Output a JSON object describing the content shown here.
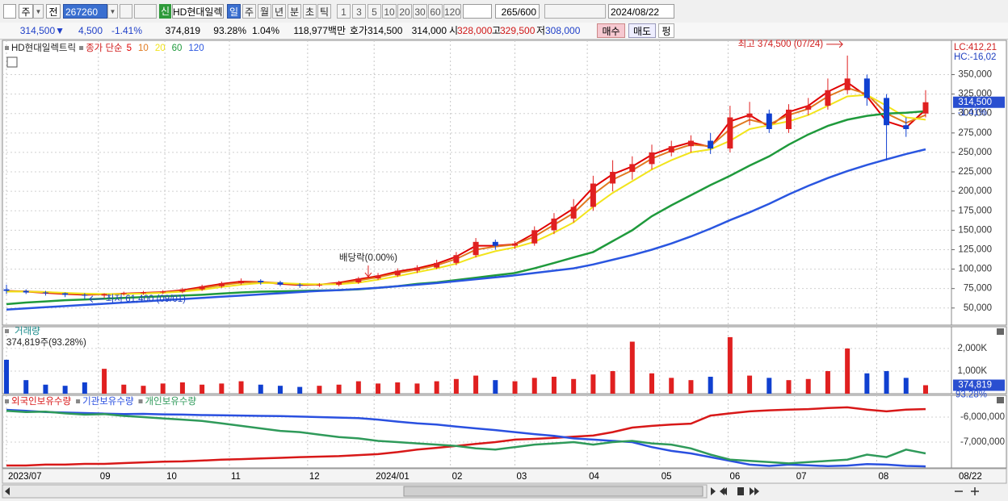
{
  "toolbar": {
    "market": "주",
    "prev": "전",
    "code": "267260",
    "name": "HD현대일렉",
    "badge": "신",
    "periods": [
      "일",
      "주",
      "월",
      "년",
      "분",
      "초",
      "틱"
    ],
    "intervals": [
      "1",
      "3",
      "5",
      "10",
      "20",
      "30",
      "60",
      "120"
    ],
    "count": "265/600",
    "date": "2024/08/22"
  },
  "info": {
    "price": "314,500▼",
    "change": "4,500",
    "rate": "-1.41%",
    "volume": "374,819",
    "vol_rate": "93.28%",
    "turnover": "1.04%",
    "amount": "118,977백만",
    "quote_label": "호가",
    "ask": "314,500",
    "bid": "314,000",
    "open_label": "시",
    "open": "328,000",
    "high_label": "고",
    "high": "329,500",
    "low_label": "저",
    "low": "308,000",
    "buy": "매수",
    "sell": "매도",
    "avg": "펑"
  },
  "chart_data": [
    {
      "type": "candlestick",
      "title": "HD현대일렉트릭",
      "ma_label": "종가 단순",
      "up_color": "#e02020",
      "down_color": "#1040d0",
      "open": [
        74000,
        72000,
        70000,
        69000,
        67000,
        66000,
        68000,
        69000,
        70000,
        71000,
        74000,
        78000,
        82000,
        85000,
        83000,
        80000,
        79000,
        80000,
        83000,
        88000,
        92000,
        98000,
        102000,
        108000,
        118000,
        135000,
        130000,
        133000,
        150000,
        165000,
        180000,
        210000,
        225000,
        235000,
        250000,
        258000,
        265000,
        255000,
        295000,
        300000,
        280000,
        305000,
        310000,
        330000,
        345000,
        320000,
        285000,
        300000
      ],
      "high": [
        80000,
        74000,
        72000,
        70000,
        69000,
        69000,
        71000,
        72000,
        73000,
        76000,
        80000,
        84000,
        88000,
        87000,
        85000,
        82000,
        82000,
        85000,
        90000,
        95000,
        101000,
        105000,
        112000,
        122000,
        140000,
        138000,
        136000,
        155000,
        172000,
        190000,
        220000,
        240000,
        245000,
        260000,
        265000,
        272000,
        275000,
        310000,
        315000,
        305000,
        312000,
        320000,
        345000,
        374500,
        350000,
        325000,
        295000,
        330000
      ],
      "low": [
        68000,
        68000,
        66000,
        64000,
        61400,
        63000,
        66000,
        67000,
        68000,
        69000,
        72000,
        76000,
        80000,
        80000,
        78000,
        76000,
        77000,
        78000,
        81000,
        86000,
        90000,
        95000,
        100000,
        105000,
        115000,
        125000,
        126000,
        130000,
        145000,
        160000,
        175000,
        200000,
        215000,
        228000,
        245000,
        250000,
        248000,
        250000,
        285000,
        275000,
        275000,
        298000,
        305000,
        325000,
        310000,
        240000,
        270000,
        295000
      ],
      "close": [
        72000,
        70000,
        69000,
        67000,
        66000,
        68000,
        69000,
        70000,
        71000,
        74000,
        78000,
        82000,
        85000,
        83000,
        80000,
        79000,
        80000,
        83000,
        88000,
        92000,
        98000,
        102000,
        108000,
        118000,
        135000,
        130000,
        133000,
        150000,
        165000,
        180000,
        210000,
        225000,
        235000,
        250000,
        258000,
        265000,
        255000,
        295000,
        300000,
        280000,
        305000,
        310000,
        330000,
        345000,
        320000,
        285000,
        280000,
        314500
      ],
      "series": [
        {
          "name": "5",
          "color": "#e00000",
          "values": [
            72000,
            71000,
            69500,
            68000,
            67000,
            67500,
            68500,
            69500,
            70500,
            73000,
            77000,
            81000,
            84000,
            83500,
            81000,
            79500,
            80000,
            82500,
            87000,
            91000,
            97000,
            101000,
            107000,
            116000,
            130000,
            130000,
            132000,
            146000,
            162000,
            178000,
            205000,
            222000,
            232000,
            247000,
            256000,
            263000,
            257000,
            290000,
            298000,
            283000,
            302000,
            310000,
            328000,
            340000,
            322000,
            290000,
            282000,
            305000
          ]
        },
        {
          "name": "10",
          "color": "#e07a20",
          "values": [
            72000,
            71500,
            70500,
            69000,
            68000,
            67500,
            68000,
            69000,
            70000,
            72000,
            75500,
            79500,
            82500,
            83500,
            82000,
            80500,
            80000,
            81500,
            85500,
            89500,
            95000,
            99500,
            105000,
            113000,
            125000,
            129000,
            131500,
            142000,
            157000,
            172000,
            196000,
            215000,
            227000,
            242000,
            252000,
            260000,
            258000,
            280000,
            292000,
            286000,
            298000,
            306000,
            322000,
            333000,
            325000,
            300000,
            288000,
            298000
          ]
        },
        {
          "name": "20",
          "color": "#f2e41c",
          "values": [
            71000,
            71000,
            70500,
            69500,
            68500,
            68000,
            68000,
            68500,
            69500,
            71000,
            73500,
            77000,
            80000,
            82000,
            82000,
            81000,
            80500,
            80500,
            82500,
            86500,
            91000,
            96000,
            101000,
            107000,
            116000,
            123000,
            128000,
            135000,
            147000,
            160000,
            180000,
            198000,
            213000,
            228000,
            240000,
            250000,
            254000,
            265000,
            280000,
            285000,
            290000,
            298000,
            310000,
            322000,
            324000,
            310000,
            295000,
            292000
          ]
        },
        {
          "name": "60",
          "color": "#1f9a3c",
          "values": [
            55000,
            57000,
            58500,
            60000,
            61000,
            62000,
            63000,
            64000,
            65000,
            66000,
            67000,
            68500,
            70000,
            71000,
            71500,
            72000,
            72500,
            73000,
            74000,
            76000,
            78000,
            81000,
            83000,
            86000,
            89000,
            92000,
            95000,
            101000,
            108000,
            115000,
            122000,
            136000,
            150000,
            168000,
            182000,
            195000,
            208000,
            220000,
            233000,
            245000,
            260000,
            273000,
            284000,
            292000,
            297000,
            300000,
            301000,
            303000
          ]
        },
        {
          "name": "120",
          "color": "#2a56e0",
          "values": [
            48000,
            49500,
            51000,
            52500,
            54000,
            55500,
            57000,
            58500,
            60000,
            61500,
            63000,
            64500,
            66000,
            67500,
            69000,
            70500,
            72000,
            73000,
            74500,
            76000,
            78000,
            80000,
            82000,
            84500,
            87000,
            89500,
            92000,
            95000,
            98000,
            101000,
            106000,
            112000,
            118000,
            125000,
            133000,
            142000,
            152000,
            163000,
            173000,
            184000,
            196000,
            207000,
            217000,
            226000,
            234000,
            241000,
            248000,
            254000
          ]
        }
      ],
      "xlim": [
        0,
        47
      ],
      "xticks": [
        {
          "value": 0,
          "label": "2023/07"
        },
        {
          "value": 4.7,
          "label": "09"
        },
        {
          "value": 8.1,
          "label": "10"
        },
        {
          "value": 11.4,
          "label": "11"
        },
        {
          "value": 15.4,
          "label": "12"
        },
        {
          "value": 18.8,
          "label": "2024/01"
        },
        {
          "value": 22.7,
          "label": "02"
        },
        {
          "value": 26,
          "label": "03"
        },
        {
          "value": 29.7,
          "label": "04"
        },
        {
          "value": 33.4,
          "label": "05"
        },
        {
          "value": 36.9,
          "label": "06"
        },
        {
          "value": 40.3,
          "label": "07"
        },
        {
          "value": 44.5,
          "label": "08"
        }
      ],
      "x_end_label": "08/22",
      "ylim": [
        28000,
        392000
      ],
      "yticks": [
        {
          "value": 50000,
          "label": "50,000"
        },
        {
          "value": 75000,
          "label": "75,000"
        },
        {
          "value": 100000,
          "label": "100,000"
        },
        {
          "value": 125000,
          "label": "125,000"
        },
        {
          "value": 150000,
          "label": "150,000"
        },
        {
          "value": 175000,
          "label": "175,000"
        },
        {
          "value": 200000,
          "label": "200,000"
        },
        {
          "value": 225000,
          "label": "225,000"
        },
        {
          "value": 250000,
          "label": "250,000"
        },
        {
          "value": 275000,
          "label": "275,000"
        },
        {
          "value": 300000,
          "label": "300,000"
        },
        {
          "value": 325000,
          "label": "325,000"
        },
        {
          "value": 350000,
          "label": "350,000"
        }
      ],
      "grid": true,
      "corner_labels": [
        {
          "text": "LC:412,21",
          "color": "#d02020"
        },
        {
          "text": "HC:-16,02",
          "color": "#2040c0"
        }
      ],
      "last_label": {
        "value": 314500,
        "label": "314,500"
      },
      "last_rate_label": "-1.41%",
      "annotations": [
        {
          "text": "최고 374,500 (07/24)",
          "x": 43,
          "y": 374500,
          "color": "#d02020",
          "direction": "right"
        },
        {
          "text": "최저 61,400 (09/01)",
          "x": 4,
          "y": 61400,
          "color": "#2040c0",
          "direction": "left"
        },
        {
          "text": "배당락(0.00%)",
          "x": 18.5,
          "y": 86000,
          "color": "#202020",
          "direction": "down"
        }
      ]
    },
    {
      "type": "bar",
      "title": "거래량",
      "subtitle": "374,819주(93.28%)",
      "up_color": "#e02020",
      "down_color": "#1040d0",
      "values": [
        1500000,
        600000,
        400000,
        350000,
        500000,
        1100000,
        400000,
        350000,
        450000,
        500000,
        400000,
        450000,
        550000,
        400000,
        350000,
        300000,
        350000,
        400000,
        550000,
        450000,
        500000,
        450000,
        550000,
        650000,
        800000,
        600000,
        550000,
        700000,
        750000,
        650000,
        850000,
        1000000,
        2300000,
        900000,
        700000,
        600000,
        750000,
        2500000,
        800000,
        700000,
        600000,
        650000,
        1000000,
        2000000,
        900000,
        1000000,
        700000,
        374819
      ],
      "ylim": [
        0,
        2960000
      ],
      "yticks": [
        {
          "value": 1000000,
          "label": "1,000K"
        },
        {
          "value": 2000000,
          "label": "2,000K"
        }
      ],
      "last_label": {
        "value": 374819,
        "label": "374,819"
      },
      "last_rate_label": "93.28%"
    },
    {
      "type": "line",
      "series": [
        {
          "name": "외국인보유수량",
          "color": "#d81818",
          "values": [
            -7935000,
            -7935000,
            -7900000,
            -7900000,
            -7870000,
            -7870000,
            -7840000,
            -7810000,
            -7780000,
            -7770000,
            -7740000,
            -7700000,
            -7680000,
            -7650000,
            -7630000,
            -7600000,
            -7580000,
            -7560000,
            -7520000,
            -7480000,
            -7400000,
            -7300000,
            -7230000,
            -7150000,
            -7070000,
            -7000000,
            -6900000,
            -6870000,
            -6830000,
            -6780000,
            -6740000,
            -6600000,
            -6420000,
            -6350000,
            -6300000,
            -6260000,
            -5940000,
            -5850000,
            -5770000,
            -5730000,
            -5700000,
            -5680000,
            -5640000,
            -5610000,
            -5700000,
            -5770000,
            -5700000,
            -5680000
          ]
        },
        {
          "name": "기관보유수량",
          "color": "#2a50e0",
          "values": [
            -5710000,
            -5750000,
            -5800000,
            -5820000,
            -5840000,
            -5860000,
            -5880000,
            -5870000,
            -5890000,
            -5900000,
            -5920000,
            -5930000,
            -5940000,
            -5950000,
            -5960000,
            -5980000,
            -6000000,
            -6020000,
            -6040000,
            -6100000,
            -6180000,
            -6250000,
            -6300000,
            -6380000,
            -6450000,
            -6520000,
            -6600000,
            -6680000,
            -6750000,
            -6850000,
            -6900000,
            -6950000,
            -7000000,
            -7200000,
            -7350000,
            -7450000,
            -7600000,
            -7750000,
            -7900000,
            -7950000,
            -7900000,
            -7930000,
            -7960000,
            -7940000,
            -7880000,
            -7900000,
            -7950000,
            -7970000
          ]
        },
        {
          "name": "개인보유수량",
          "color": "#2f9a5a",
          "values": [
            -5750000,
            -5800000,
            -5780000,
            -5850000,
            -5900000,
            -5880000,
            -5950000,
            -6000000,
            -6050000,
            -6100000,
            -6150000,
            -6250000,
            -6350000,
            -6450000,
            -6550000,
            -6600000,
            -6700000,
            -6800000,
            -6850000,
            -6950000,
            -7000000,
            -7050000,
            -7100000,
            -7150000,
            -7250000,
            -7300000,
            -7200000,
            -7100000,
            -7050000,
            -7000000,
            -7100000,
            -7000000,
            -6950000,
            -7050000,
            -7100000,
            -7250000,
            -7500000,
            -7700000,
            -7750000,
            -7800000,
            -7850000,
            -7800000,
            -7750000,
            -7700000,
            -7500000,
            -7600000,
            -7300000,
            -7450000
          ]
        }
      ],
      "ylim": [
        -8032000,
        -5129000
      ],
      "yticks": [
        {
          "value": -6000000,
          "label": "-6,000,000"
        },
        {
          "value": -7000000,
          "label": "-7,000,000"
        }
      ]
    }
  ]
}
